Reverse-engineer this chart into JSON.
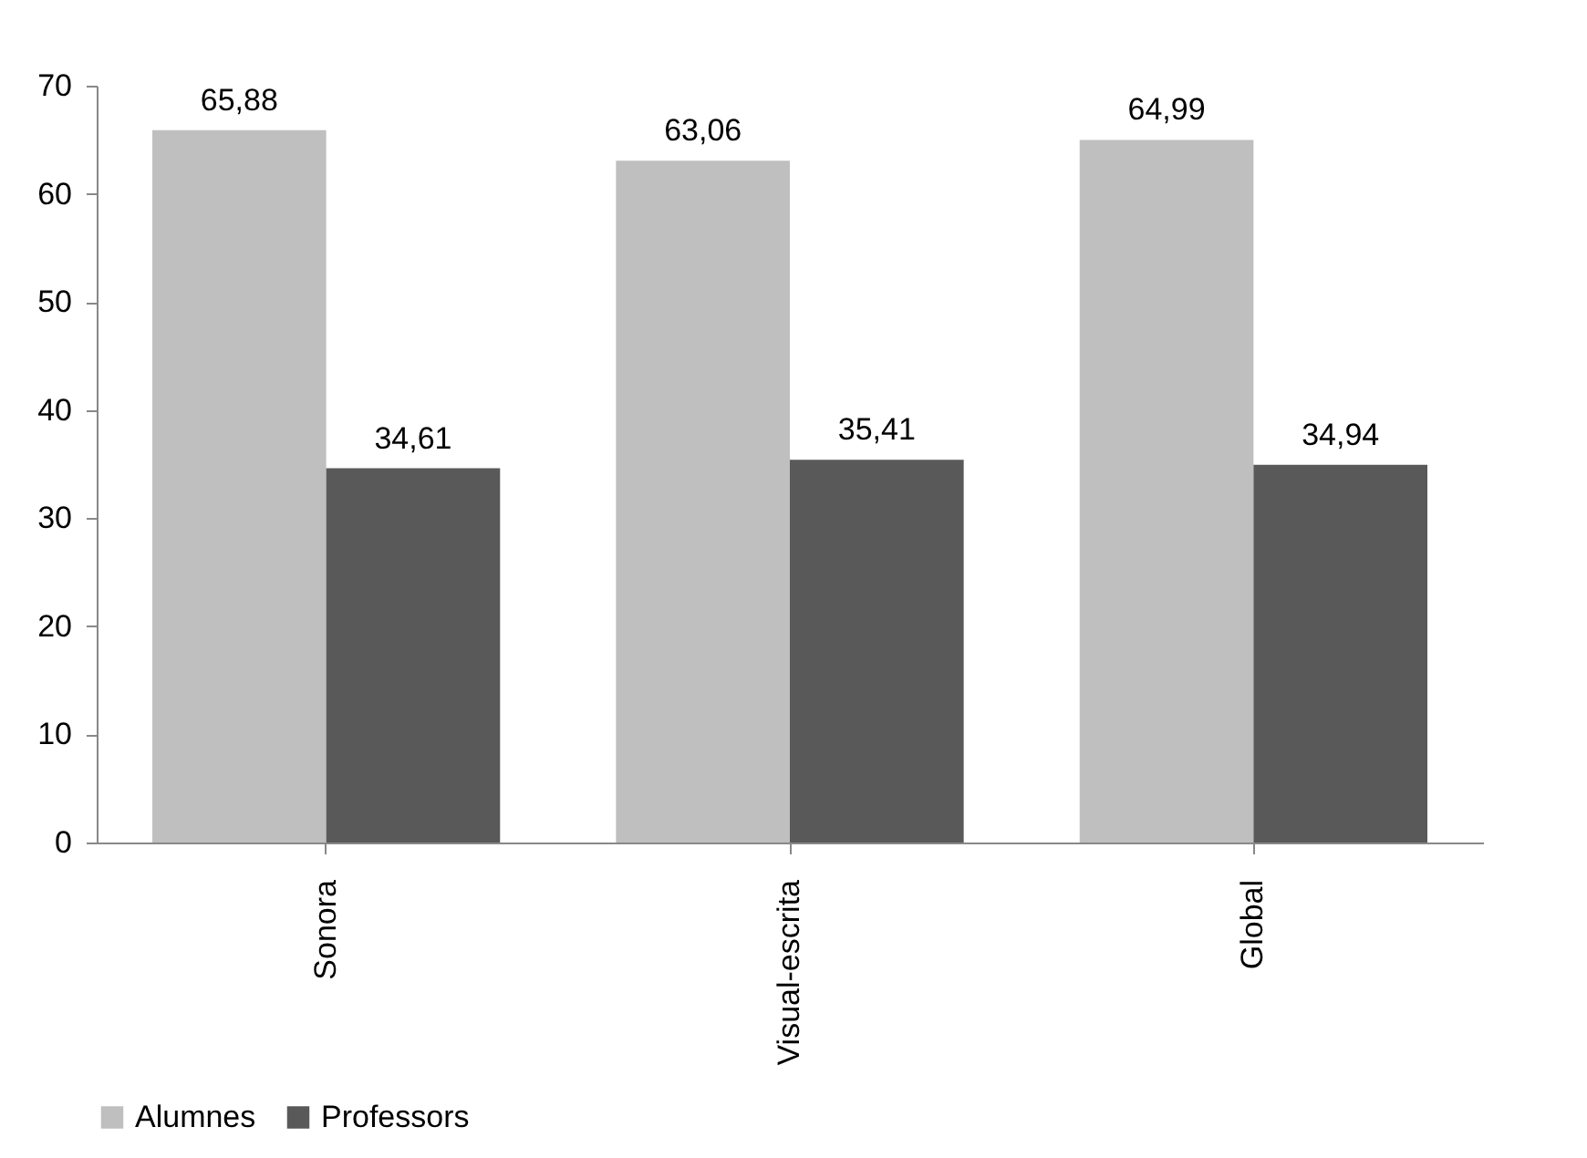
{
  "chart_data": {
    "type": "bar",
    "categories": [
      "Sonora",
      "Visual-escrita",
      "Global"
    ],
    "series": [
      {
        "name": "Alumnes",
        "color": "#bfbfbf",
        "values": [
          65.88,
          63.06,
          64.99
        ],
        "value_labels": [
          "65,88",
          "63,06",
          "64,99"
        ]
      },
      {
        "name": "Professors",
        "color": "#595959",
        "values": [
          34.61,
          35.41,
          34.94
        ],
        "value_labels": [
          "34,61",
          "35,41",
          "34,94"
        ]
      }
    ],
    "ylim": [
      0,
      70
    ],
    "yticks": [
      0,
      10,
      20,
      30,
      40,
      50,
      60,
      70
    ],
    "grid": false,
    "legend": "bottom"
  }
}
